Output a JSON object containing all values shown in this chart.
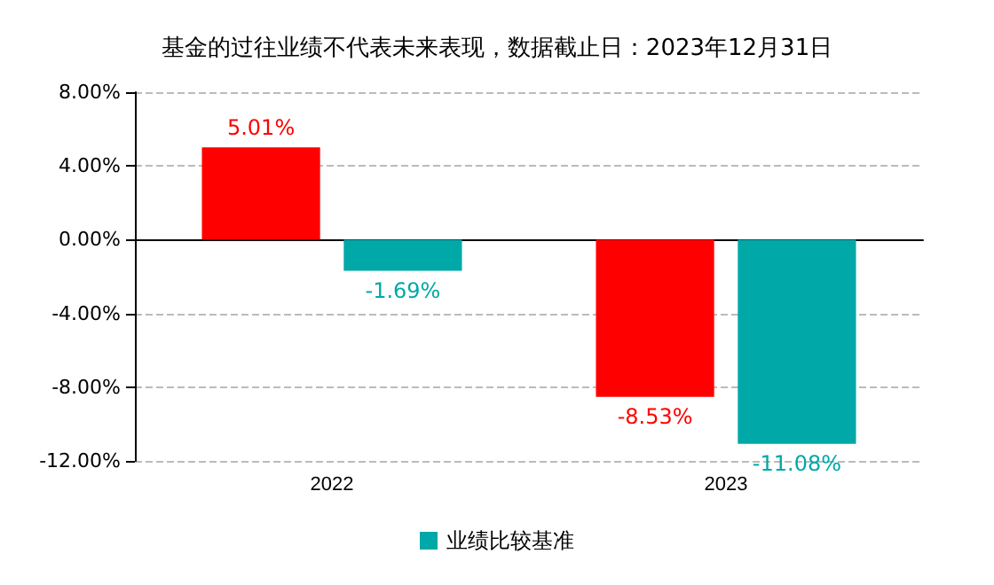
{
  "chart_data": {
    "type": "bar",
    "title": "基金的过往业绩不代表未来表现，数据截止日：2023年12月31日",
    "categories": [
      "2022",
      "2023"
    ],
    "series": [
      {
        "color": "#ff0000",
        "values": [
          5.01,
          -8.53
        ],
        "value_labels": [
          "5.01%",
          "-8.53%"
        ]
      },
      {
        "name": "业绩比较基准",
        "color": "#00a8a8",
        "values": [
          -1.69,
          -11.08
        ],
        "value_labels": [
          "-1.69%",
          "-11.08%"
        ]
      }
    ],
    "ylim": [
      -12,
      8
    ],
    "yticks": [
      {
        "value": -12,
        "label": "-12.00%"
      },
      {
        "value": -8,
        "label": "-8.00%"
      },
      {
        "value": -4,
        "label": "-4.00%"
      },
      {
        "value": 0,
        "label": "0.00%"
      },
      {
        "value": 4,
        "label": "4.00%"
      },
      {
        "value": 8,
        "label": "8.00%"
      }
    ],
    "grid": "y",
    "legend": "bottom"
  }
}
